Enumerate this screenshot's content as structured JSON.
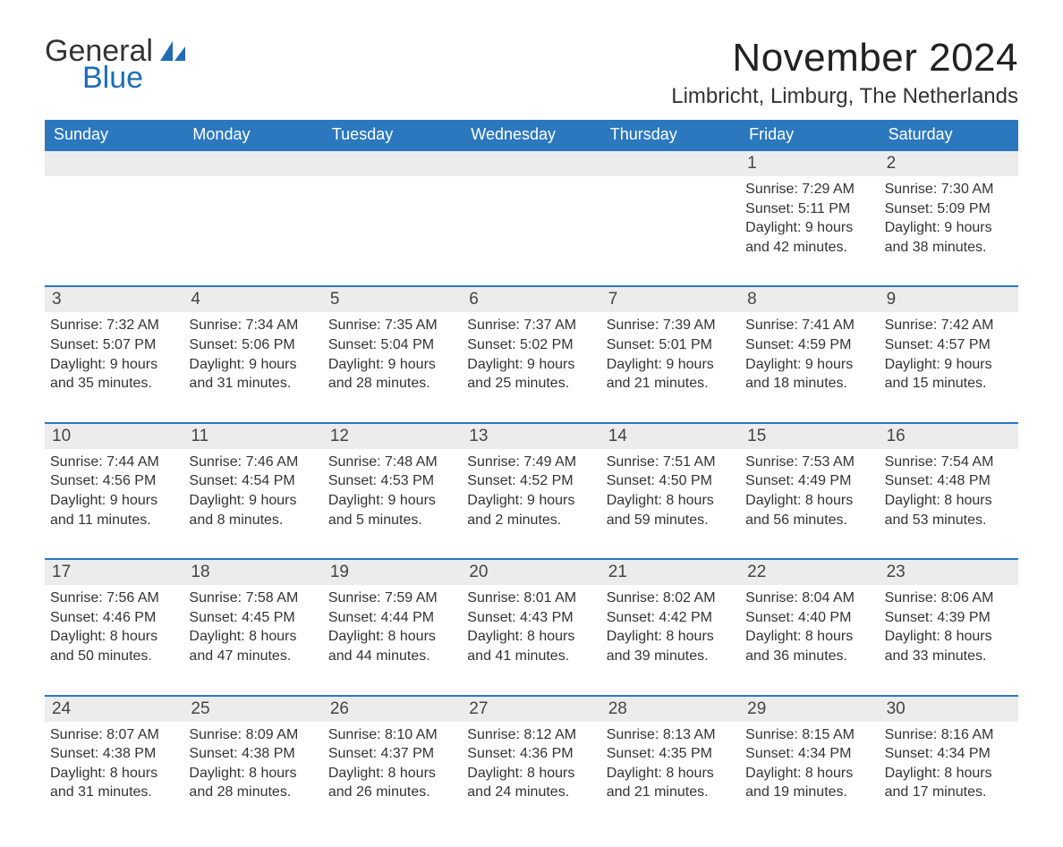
{
  "brand": {
    "general": "General",
    "blue": "Blue"
  },
  "colors": {
    "header_bg": "#2c78be",
    "header_text": "#ffffff",
    "daynum_bg": "#ececec",
    "row_border": "#2c78be",
    "brand_blue": "#1f6db5",
    "body_text": "#333333",
    "page_bg": "#ffffff"
  },
  "typography": {
    "month_title_fontsize": 44,
    "location_fontsize": 24,
    "weekday_fontsize": 18,
    "daynum_fontsize": 19,
    "dayinfo_fontsize": 16
  },
  "title": "November 2024",
  "location": "Limbricht, Limburg, The Netherlands",
  "weekdays": [
    "Sunday",
    "Monday",
    "Tuesday",
    "Wednesday",
    "Thursday",
    "Friday",
    "Saturday"
  ],
  "weeks": [
    [
      null,
      null,
      null,
      null,
      null,
      {
        "n": "1",
        "sr": "Sunrise: 7:29 AM",
        "ss": "Sunset: 5:11 PM",
        "d1": "Daylight: 9 hours",
        "d2": "and 42 minutes."
      },
      {
        "n": "2",
        "sr": "Sunrise: 7:30 AM",
        "ss": "Sunset: 5:09 PM",
        "d1": "Daylight: 9 hours",
        "d2": "and 38 minutes."
      }
    ],
    [
      {
        "n": "3",
        "sr": "Sunrise: 7:32 AM",
        "ss": "Sunset: 5:07 PM",
        "d1": "Daylight: 9 hours",
        "d2": "and 35 minutes."
      },
      {
        "n": "4",
        "sr": "Sunrise: 7:34 AM",
        "ss": "Sunset: 5:06 PM",
        "d1": "Daylight: 9 hours",
        "d2": "and 31 minutes."
      },
      {
        "n": "5",
        "sr": "Sunrise: 7:35 AM",
        "ss": "Sunset: 5:04 PM",
        "d1": "Daylight: 9 hours",
        "d2": "and 28 minutes."
      },
      {
        "n": "6",
        "sr": "Sunrise: 7:37 AM",
        "ss": "Sunset: 5:02 PM",
        "d1": "Daylight: 9 hours",
        "d2": "and 25 minutes."
      },
      {
        "n": "7",
        "sr": "Sunrise: 7:39 AM",
        "ss": "Sunset: 5:01 PM",
        "d1": "Daylight: 9 hours",
        "d2": "and 21 minutes."
      },
      {
        "n": "8",
        "sr": "Sunrise: 7:41 AM",
        "ss": "Sunset: 4:59 PM",
        "d1": "Daylight: 9 hours",
        "d2": "and 18 minutes."
      },
      {
        "n": "9",
        "sr": "Sunrise: 7:42 AM",
        "ss": "Sunset: 4:57 PM",
        "d1": "Daylight: 9 hours",
        "d2": "and 15 minutes."
      }
    ],
    [
      {
        "n": "10",
        "sr": "Sunrise: 7:44 AM",
        "ss": "Sunset: 4:56 PM",
        "d1": "Daylight: 9 hours",
        "d2": "and 11 minutes."
      },
      {
        "n": "11",
        "sr": "Sunrise: 7:46 AM",
        "ss": "Sunset: 4:54 PM",
        "d1": "Daylight: 9 hours",
        "d2": "and 8 minutes."
      },
      {
        "n": "12",
        "sr": "Sunrise: 7:48 AM",
        "ss": "Sunset: 4:53 PM",
        "d1": "Daylight: 9 hours",
        "d2": "and 5 minutes."
      },
      {
        "n": "13",
        "sr": "Sunrise: 7:49 AM",
        "ss": "Sunset: 4:52 PM",
        "d1": "Daylight: 9 hours",
        "d2": "and 2 minutes."
      },
      {
        "n": "14",
        "sr": "Sunrise: 7:51 AM",
        "ss": "Sunset: 4:50 PM",
        "d1": "Daylight: 8 hours",
        "d2": "and 59 minutes."
      },
      {
        "n": "15",
        "sr": "Sunrise: 7:53 AM",
        "ss": "Sunset: 4:49 PM",
        "d1": "Daylight: 8 hours",
        "d2": "and 56 minutes."
      },
      {
        "n": "16",
        "sr": "Sunrise: 7:54 AM",
        "ss": "Sunset: 4:48 PM",
        "d1": "Daylight: 8 hours",
        "d2": "and 53 minutes."
      }
    ],
    [
      {
        "n": "17",
        "sr": "Sunrise: 7:56 AM",
        "ss": "Sunset: 4:46 PM",
        "d1": "Daylight: 8 hours",
        "d2": "and 50 minutes."
      },
      {
        "n": "18",
        "sr": "Sunrise: 7:58 AM",
        "ss": "Sunset: 4:45 PM",
        "d1": "Daylight: 8 hours",
        "d2": "and 47 minutes."
      },
      {
        "n": "19",
        "sr": "Sunrise: 7:59 AM",
        "ss": "Sunset: 4:44 PM",
        "d1": "Daylight: 8 hours",
        "d2": "and 44 minutes."
      },
      {
        "n": "20",
        "sr": "Sunrise: 8:01 AM",
        "ss": "Sunset: 4:43 PM",
        "d1": "Daylight: 8 hours",
        "d2": "and 41 minutes."
      },
      {
        "n": "21",
        "sr": "Sunrise: 8:02 AM",
        "ss": "Sunset: 4:42 PM",
        "d1": "Daylight: 8 hours",
        "d2": "and 39 minutes."
      },
      {
        "n": "22",
        "sr": "Sunrise: 8:04 AM",
        "ss": "Sunset: 4:40 PM",
        "d1": "Daylight: 8 hours",
        "d2": "and 36 minutes."
      },
      {
        "n": "23",
        "sr": "Sunrise: 8:06 AM",
        "ss": "Sunset: 4:39 PM",
        "d1": "Daylight: 8 hours",
        "d2": "and 33 minutes."
      }
    ],
    [
      {
        "n": "24",
        "sr": "Sunrise: 8:07 AM",
        "ss": "Sunset: 4:38 PM",
        "d1": "Daylight: 8 hours",
        "d2": "and 31 minutes."
      },
      {
        "n": "25",
        "sr": "Sunrise: 8:09 AM",
        "ss": "Sunset: 4:38 PM",
        "d1": "Daylight: 8 hours",
        "d2": "and 28 minutes."
      },
      {
        "n": "26",
        "sr": "Sunrise: 8:10 AM",
        "ss": "Sunset: 4:37 PM",
        "d1": "Daylight: 8 hours",
        "d2": "and 26 minutes."
      },
      {
        "n": "27",
        "sr": "Sunrise: 8:12 AM",
        "ss": "Sunset: 4:36 PM",
        "d1": "Daylight: 8 hours",
        "d2": "and 24 minutes."
      },
      {
        "n": "28",
        "sr": "Sunrise: 8:13 AM",
        "ss": "Sunset: 4:35 PM",
        "d1": "Daylight: 8 hours",
        "d2": "and 21 minutes."
      },
      {
        "n": "29",
        "sr": "Sunrise: 8:15 AM",
        "ss": "Sunset: 4:34 PM",
        "d1": "Daylight: 8 hours",
        "d2": "and 19 minutes."
      },
      {
        "n": "30",
        "sr": "Sunrise: 8:16 AM",
        "ss": "Sunset: 4:34 PM",
        "d1": "Daylight: 8 hours",
        "d2": "and 17 minutes."
      }
    ]
  ]
}
